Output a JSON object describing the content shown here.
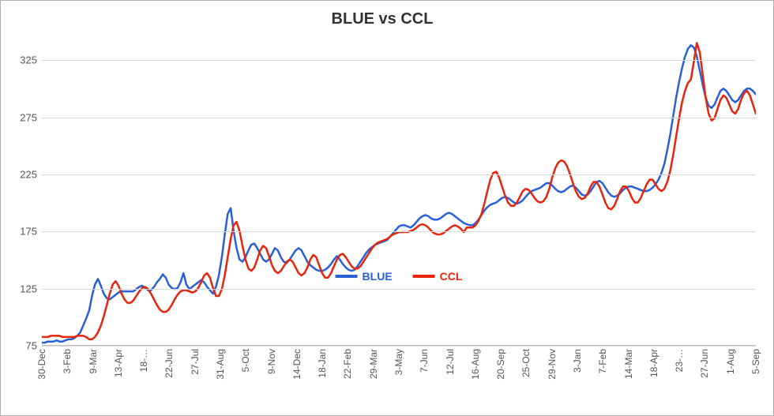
{
  "chart": {
    "type": "line",
    "title": "BLUE vs CCL",
    "title_fontsize": 20,
    "title_color": "#333333",
    "background_color": "#ffffff",
    "border_color": "#b0b0b0",
    "grid_color": "#d9d9d9",
    "axis_line_color": "#bfbfbf",
    "ylim": [
      75,
      350
    ],
    "yticks": [
      75,
      125,
      175,
      225,
      275,
      325
    ],
    "ytick_fontsize": 13,
    "ytick_color": "#555555",
    "xticks": [
      "30-Dec",
      "3-Feb",
      "9-Mar",
      "13-Apr",
      "18-…",
      "22-Jun",
      "27-Jul",
      "31-Aug",
      "5-Oct",
      "9-Nov",
      "14-Dec",
      "18-Jan",
      "22-Feb",
      "29-Mar",
      "3-May",
      "7-Jun",
      "12-Jul",
      "16-Aug",
      "20-Sep",
      "25-Oct",
      "29-Nov",
      "3-Jan",
      "7-Feb",
      "14-Mar",
      "18-Apr",
      "23-…",
      "27-Jun",
      "1-Aug",
      "5-Sep"
    ],
    "xtick_fontsize": 12,
    "xtick_color": "#555555",
    "xtick_rotation": -90,
    "line_width": 2.5,
    "legend_position": "bottom-center-inside",
    "legend_fontsize": 14,
    "series": [
      {
        "name": "BLUE",
        "color": "#2960d8",
        "values": [
          77,
          77,
          78,
          78,
          78,
          79,
          78,
          78,
          79,
          80,
          80,
          81,
          83,
          86,
          92,
          98,
          105,
          118,
          128,
          133,
          127,
          120,
          116,
          115,
          117,
          119,
          121,
          122,
          122,
          122,
          122,
          122,
          124,
          126,
          127,
          125,
          123,
          123,
          126,
          130,
          133,
          137,
          134,
          128,
          125,
          124,
          125,
          130,
          138,
          128,
          124,
          126,
          128,
          130,
          132,
          130,
          126,
          123,
          120,
          126,
          136,
          152,
          172,
          190,
          195,
          175,
          160,
          150,
          148,
          152,
          158,
          163,
          164,
          160,
          155,
          150,
          148,
          150,
          155,
          160,
          158,
          152,
          148,
          147,
          150,
          154,
          158,
          160,
          158,
          153,
          148,
          145,
          143,
          141,
          140,
          140,
          141,
          143,
          146,
          150,
          153,
          150,
          146,
          143,
          141,
          140,
          141,
          144,
          148,
          152,
          156,
          159,
          161,
          163,
          164,
          165,
          166,
          167,
          170,
          173,
          176,
          179,
          180,
          180,
          179,
          178,
          180,
          183,
          186,
          188,
          189,
          188,
          186,
          185,
          185,
          186,
          188,
          190,
          191,
          190,
          188,
          186,
          184,
          182,
          181,
          180,
          180,
          182,
          185,
          189,
          193,
          196,
          198,
          199,
          200,
          202,
          204,
          205,
          204,
          202,
          200,
          199,
          200,
          202,
          205,
          208,
          210,
          211,
          212,
          213,
          215,
          217,
          217,
          215,
          212,
          210,
          209,
          210,
          212,
          214,
          215,
          213,
          210,
          207,
          206,
          207,
          210,
          214,
          218,
          219,
          217,
          213,
          209,
          206,
          205,
          206,
          208,
          211,
          213,
          214,
          214,
          213,
          212,
          211,
          210,
          210,
          211,
          213,
          216,
          220,
          226,
          234,
          246,
          260,
          276,
          292,
          306,
          318,
          328,
          335,
          338,
          336,
          328,
          316,
          303,
          292,
          285,
          283,
          286,
          292,
          298,
          300,
          298,
          294,
          290,
          288,
          290,
          294,
          298,
          300,
          300,
          298,
          295
        ]
      },
      {
        "name": "CCL",
        "color": "#e8240c",
        "values": [
          82,
          82,
          82,
          83,
          83,
          83,
          83,
          82,
          82,
          82,
          82,
          82,
          83,
          83,
          83,
          82,
          80,
          80,
          82,
          86,
          92,
          100,
          110,
          120,
          128,
          131,
          127,
          120,
          115,
          112,
          112,
          114,
          118,
          122,
          125,
          126,
          124,
          120,
          115,
          110,
          106,
          104,
          104,
          106,
          110,
          115,
          119,
          122,
          123,
          123,
          122,
          121,
          122,
          125,
          130,
          136,
          138,
          134,
          125,
          118,
          118,
          124,
          136,
          152,
          168,
          180,
          183,
          175,
          162,
          150,
          142,
          140,
          143,
          150,
          158,
          162,
          160,
          153,
          145,
          140,
          138,
          140,
          144,
          148,
          150,
          148,
          143,
          138,
          136,
          138,
          143,
          150,
          154,
          152,
          145,
          138,
          134,
          134,
          138,
          144,
          150,
          154,
          155,
          152,
          148,
          144,
          142,
          142,
          144,
          148,
          152,
          156,
          160,
          163,
          165,
          166,
          167,
          168,
          170,
          172,
          173,
          174,
          174,
          174,
          174,
          175,
          176,
          178,
          180,
          181,
          180,
          178,
          175,
          173,
          172,
          172,
          173,
          175,
          177,
          179,
          180,
          179,
          177,
          174,
          178,
          178,
          178,
          180,
          184,
          190,
          199,
          210,
          220,
          226,
          227,
          222,
          214,
          206,
          200,
          197,
          197,
          200,
          205,
          210,
          212,
          211,
          208,
          204,
          201,
          200,
          201,
          205,
          212,
          222,
          230,
          235,
          237,
          236,
          232,
          225,
          217,
          210,
          205,
          203,
          204,
          208,
          214,
          218,
          218,
          214,
          207,
          200,
          195,
          194,
          197,
          203,
          210,
          214,
          214,
          210,
          204,
          200,
          200,
          204,
          210,
          216,
          220,
          220,
          216,
          212,
          210,
          212,
          218,
          228,
          242,
          258,
          274,
          288,
          298,
          305,
          308,
          324,
          340,
          332,
          312,
          292,
          278,
          272,
          274,
          282,
          290,
          294,
          292,
          286,
          280,
          278,
          282,
          290,
          296,
          298,
          294,
          286,
          278
        ]
      }
    ]
  }
}
